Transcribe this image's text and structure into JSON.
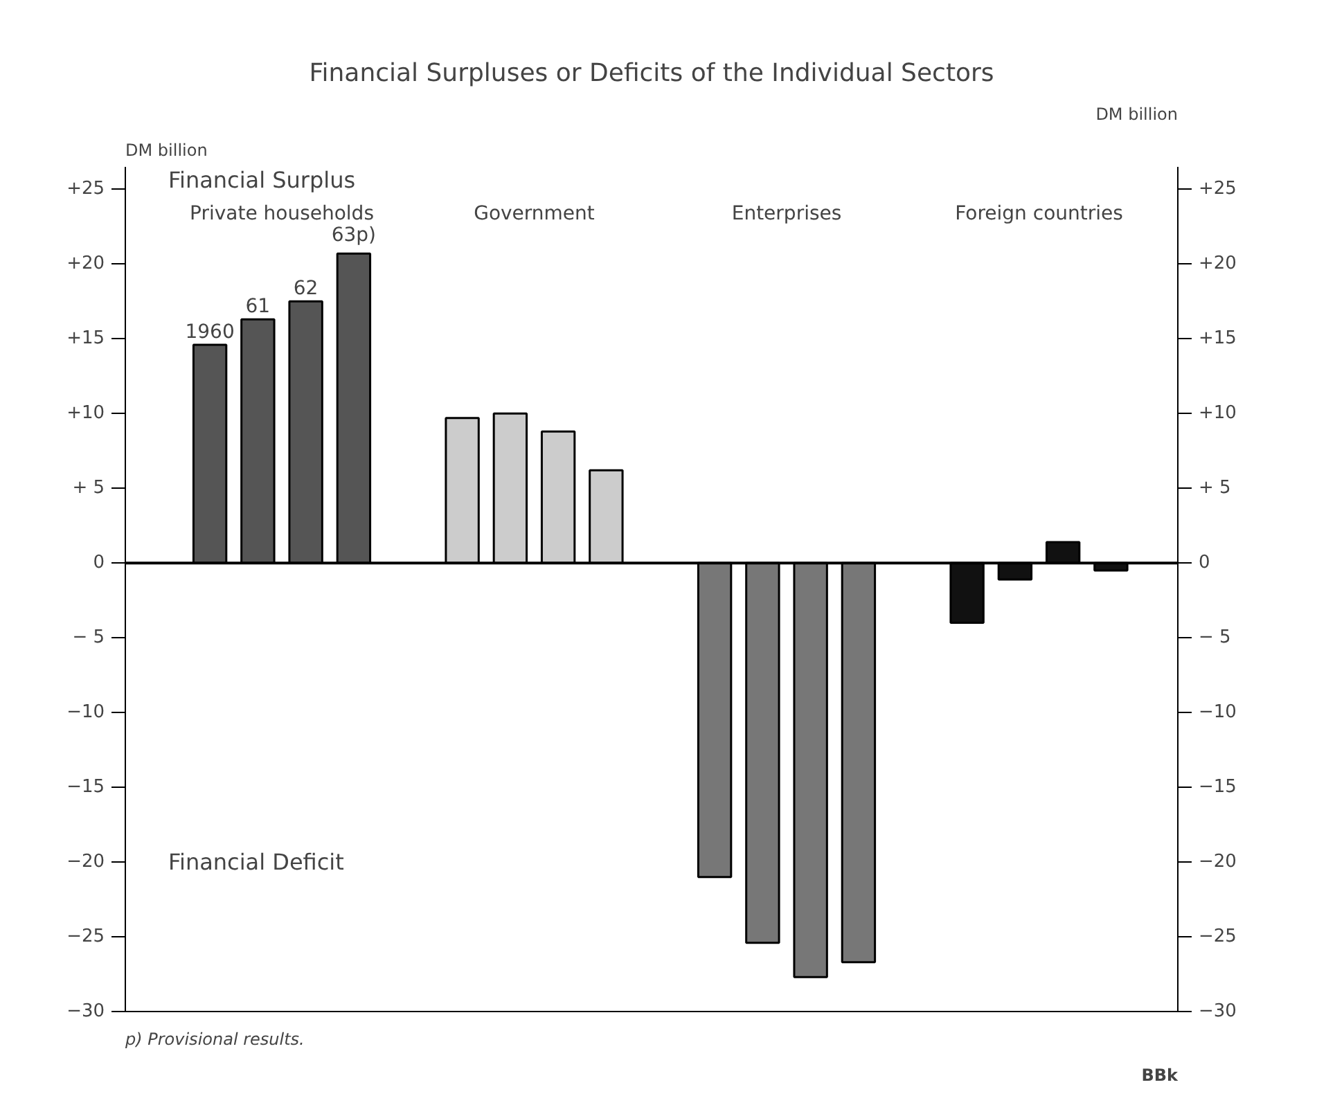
{
  "chart_data": {
    "type": "bar",
    "title": "Financial Surpluses or Deficits of the Individual Sectors",
    "ylabel": "DM billion",
    "y2label": "DM billion",
    "categories": [
      "Private households",
      "Government",
      "Enterprises",
      "Foreign countries"
    ],
    "series": [
      {
        "name": "1960",
        "colors": [
          "#555555",
          "#cccccc",
          "#777777",
          "#111111"
        ],
        "values": [
          14.6,
          9.7,
          -21.0,
          -4.0
        ]
      },
      {
        "name": "61",
        "colors": [
          "#555555",
          "#cccccc",
          "#777777",
          "#111111"
        ],
        "values": [
          16.3,
          10.0,
          -25.4,
          -1.1
        ]
      },
      {
        "name": "62",
        "colors": [
          "#555555",
          "#cccccc",
          "#777777",
          "#111111"
        ],
        "values": [
          17.5,
          8.8,
          -27.7,
          1.4
        ]
      },
      {
        "name": "63p)",
        "colors": [
          "#555555",
          "#cccccc",
          "#777777",
          "#111111"
        ],
        "values": [
          20.7,
          6.2,
          -26.7,
          -0.5
        ]
      }
    ],
    "ylim": [
      -30,
      26.5
    ],
    "yticks": [
      {
        "value": -30,
        "label": "−30"
      },
      {
        "value": -25,
        "label": "−25"
      },
      {
        "value": -20,
        "label": "−20"
      },
      {
        "value": -15,
        "label": "−15"
      },
      {
        "value": -10,
        "label": "−10"
      },
      {
        "value": -5,
        "label": "− 5"
      },
      0,
      {
        "value": 5,
        "label": "+ 5"
      },
      {
        "value": 10,
        "label": "+10"
      },
      {
        "value": 15,
        "label": "+15"
      },
      {
        "value": 20,
        "label": "+20"
      },
      {
        "value": 25,
        "label": "+25"
      }
    ],
    "y2lim": [
      -30,
      26.5
    ],
    "y2ticks": [
      {
        "value": -30,
        "label": "−30"
      },
      {
        "value": -25,
        "label": "−25"
      },
      {
        "value": -20,
        "label": "−20"
      },
      {
        "value": -15,
        "label": "−15"
      },
      {
        "value": -10,
        "label": "−10"
      },
      {
        "value": -5,
        "label": "− 5"
      },
      0,
      {
        "value": 5,
        "label": "+ 5"
      },
      {
        "value": 10,
        "label": "+10"
      },
      {
        "value": 15,
        "label": "+15"
      },
      {
        "value": 20,
        "label": "+20"
      },
      {
        "value": 25,
        "label": "+25"
      }
    ],
    "annotations": [
      "Financial Surplus",
      "Financial Deficit",
      "p) Provisional results.",
      "BBk"
    ],
    "ref_lines": [
      {
        "axis": "y",
        "value": 0,
        "color": "#000000"
      }
    ],
    "grid": false,
    "legend": false
  }
}
